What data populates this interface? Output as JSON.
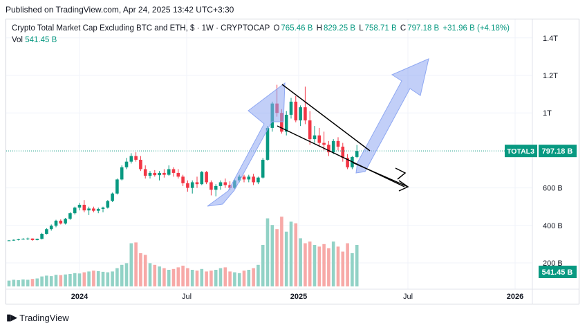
{
  "published": "Published on TradingView.com, Apr 24, 2025 13:42 UTC+3:30",
  "header": {
    "title": "Crypto Total Market Cap Excluding BTC and ETH, $ · 1W · CRYPTOCAP",
    "open_label": "O",
    "open": "765.46 B",
    "high_label": "H",
    "high": "829.25 B",
    "low_label": "L",
    "low": "758.71 B",
    "close_label": "C",
    "close": "797.18 B",
    "change": "+31.96 B (+4.18%)",
    "vol_label": "Vol",
    "vol": "541.45 B"
  },
  "price_tag": {
    "symbol": "TOTAL3",
    "value": "797.18 B",
    "volume": "541.45 B"
  },
  "footer": {
    "brand": "TradingView"
  },
  "colors": {
    "up": "#089981",
    "down": "#f23645",
    "up_vol": "#92d2c6",
    "down_vol": "#f7a9a7",
    "arrow": "#8fa8f2"
  },
  "chart_data": {
    "type": "candlestick",
    "y_ticks": [
      "1.4T",
      "1.2T",
      "1T",
      "600 B",
      "400 B",
      "200 B"
    ],
    "x_ticks": [
      "2024",
      "Jul",
      "2025",
      "Jul",
      "2026"
    ],
    "candles": [
      [
        320,
        322,
        317,
        320
      ],
      [
        320,
        325,
        318,
        323
      ],
      [
        323,
        328,
        320,
        326
      ],
      [
        326,
        332,
        324,
        328
      ],
      [
        328,
        335,
        322,
        330
      ],
      [
        330,
        331,
        318,
        322
      ],
      [
        322,
        330,
        320,
        328
      ],
      [
        328,
        360,
        325,
        355
      ],
      [
        355,
        385,
        352,
        380
      ],
      [
        380,
        405,
        372,
        398
      ],
      [
        398,
        430,
        390,
        425
      ],
      [
        425,
        432,
        405,
        410
      ],
      [
        410,
        440,
        405,
        435
      ],
      [
        435,
        470,
        430,
        465
      ],
      [
        465,
        500,
        458,
        495
      ],
      [
        495,
        520,
        480,
        510
      ],
      [
        510,
        535,
        470,
        480
      ],
      [
        480,
        500,
        455,
        490
      ],
      [
        490,
        500,
        470,
        478
      ],
      [
        478,
        495,
        465,
        488
      ],
      [
        488,
        500,
        470,
        495
      ],
      [
        495,
        535,
        490,
        530
      ],
      [
        530,
        575,
        525,
        570
      ],
      [
        570,
        650,
        565,
        645
      ],
      [
        645,
        720,
        640,
        710
      ],
      [
        710,
        760,
        700,
        740
      ],
      [
        740,
        785,
        730,
        770
      ],
      [
        770,
        790,
        740,
        750
      ],
      [
        750,
        770,
        690,
        700
      ],
      [
        700,
        720,
        650,
        665
      ],
      [
        665,
        690,
        650,
        680
      ],
      [
        680,
        695,
        660,
        668
      ],
      [
        668,
        690,
        640,
        680
      ],
      [
        680,
        700,
        655,
        670
      ],
      [
        670,
        720,
        665,
        700
      ],
      [
        700,
        710,
        660,
        680
      ],
      [
        680,
        700,
        650,
        660
      ],
      [
        660,
        670,
        610,
        625
      ],
      [
        625,
        640,
        580,
        600
      ],
      [
        600,
        640,
        570,
        630
      ],
      [
        630,
        660,
        600,
        620
      ],
      [
        620,
        690,
        615,
        685
      ],
      [
        685,
        690,
        620,
        630
      ],
      [
        630,
        640,
        560,
        590
      ],
      [
        590,
        620,
        555,
        610
      ],
      [
        610,
        640,
        590,
        630
      ],
      [
        630,
        650,
        600,
        615
      ],
      [
        615,
        635,
        590,
        600
      ],
      [
        600,
        645,
        595,
        640
      ],
      [
        640,
        670,
        630,
        660
      ],
      [
        660,
        670,
        630,
        645
      ],
      [
        645,
        670,
        630,
        660
      ],
      [
        660,
        675,
        615,
        630
      ],
      [
        630,
        660,
        620,
        655
      ],
      [
        655,
        760,
        650,
        750
      ],
      [
        750,
        930,
        745,
        920
      ],
      [
        920,
        1060,
        900,
        1050
      ],
      [
        1050,
        1150,
        980,
        1000
      ],
      [
        1000,
        1020,
        890,
        900
      ],
      [
        900,
        1010,
        880,
        990
      ],
      [
        990,
        1080,
        970,
        1060
      ],
      [
        1060,
        1090,
        950,
        960
      ],
      [
        960,
        1040,
        930,
        1030
      ],
      [
        1030,
        1140,
        940,
        960
      ],
      [
        960,
        1010,
        830,
        860
      ],
      [
        860,
        930,
        840,
        880
      ],
      [
        880,
        920,
        820,
        840
      ],
      [
        840,
        900,
        800,
        830
      ],
      [
        830,
        850,
        770,
        790
      ],
      [
        790,
        860,
        780,
        850
      ],
      [
        850,
        870,
        800,
        820
      ],
      [
        820,
        840,
        740,
        760
      ],
      [
        760,
        780,
        700,
        710
      ],
      [
        710,
        770,
        700,
        765
      ],
      [
        765,
        829,
        759,
        797
      ]
    ],
    "volumes": [
      35,
      40,
      38,
      42,
      40,
      45,
      48,
      60,
      65,
      62,
      70,
      68,
      72,
      75,
      80,
      78,
      85,
      90,
      95,
      92,
      88,
      85,
      90,
      110,
      130,
      140,
      260,
      265,
      200,
      190,
      140,
      130,
      120,
      110,
      100,
      105,
      115,
      125,
      110,
      100,
      95,
      105,
      90,
      95,
      100,
      110,
      115,
      90,
      85,
      80,
      95,
      100,
      110,
      130,
      250,
      410,
      370,
      345,
      420,
      330,
      390,
      380,
      290,
      260,
      270,
      250,
      240,
      255,
      230,
      270,
      240,
      210,
      260,
      200,
      250
    ]
  }
}
